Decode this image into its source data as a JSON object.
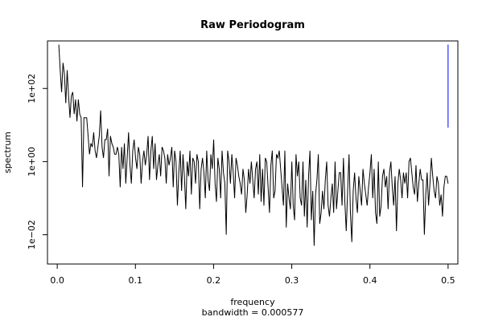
{
  "chart_data": {
    "type": "line",
    "title": "Raw Periodogram",
    "xlabel": "frequency",
    "xlabel_sub": "bandwidth = 0.000577",
    "ylabel": "spectrum",
    "x_ticks": [
      0.0,
      0.1,
      0.2,
      0.3,
      0.4,
      0.5
    ],
    "x_tick_labels": [
      "0.0",
      "0.1",
      "0.2",
      "0.3",
      "0.4",
      "0.5"
    ],
    "y_scale": "log",
    "y_ticks": [
      0.01,
      1,
      100
    ],
    "y_tick_labels": [
      "1e−02",
      "1e+00",
      "1e+02"
    ],
    "xlim": [
      -0.0125,
      0.5125
    ],
    "ylim_log10": [
      -2.8,
      3.3
    ],
    "colors": {
      "series": "#000000",
      "bandwidth_marker": "#0000ff"
    },
    "bandwidth_marker": {
      "x": 0.5,
      "y_low_log10": 0.93,
      "y_high_log10": 3.2
    },
    "series": [
      {
        "x_start": 0.002,
        "x_end": 0.5,
        "log10_y": [
          3.2,
          2.5,
          1.9,
          2.7,
          2.4,
          1.6,
          2.5,
          1.8,
          1.2,
          1.8,
          1.9,
          1.3,
          1.7,
          1.1,
          1.7,
          1.3,
          1.2,
          -0.7,
          1.2,
          1.2,
          1.2,
          0.7,
          0.2,
          0.5,
          0.4,
          0.8,
          0.3,
          0.1,
          0.4,
          0.7,
          1.4,
          0.4,
          0.1,
          0.6,
          0.6,
          0.9,
          -0.4,
          0.7,
          0.5,
          0.4,
          0.2,
          0.2,
          0.4,
          0.2,
          -0.7,
          0.4,
          -0.2,
          0.5,
          -0.6,
          0.1,
          0.8,
          -0.1,
          -0.6,
          0.3,
          0.6,
          0.1,
          -0.2,
          0.4,
          0.2,
          -0.6,
          0.0,
          0.3,
          -0.1,
          0.2,
          0.7,
          -0.5,
          0.3,
          0.7,
          -0.2,
          0.5,
          -0.5,
          -0.1,
          0.2,
          -0.4,
          0.4,
          0.3,
          0.1,
          -0.6,
          0.2,
          -0.1,
          0.1,
          0.4,
          -0.7,
          0.3,
          0.0,
          -1.2,
          -0.3,
          0.3,
          -0.8,
          0.2,
          -0.4,
          -1.3,
          0.0,
          -0.4,
          0.3,
          -0.9,
          0.1,
          0.0,
          -0.6,
          0.2,
          0.0,
          -1.3,
          -0.2,
          0.1,
          -0.3,
          -1.0,
          0.3,
          -0.5,
          -0.8,
          0.2,
          -0.2,
          0.6,
          -0.6,
          -1.1,
          0.1,
          -0.2,
          -1.0,
          0.3,
          -0.3,
          -0.6,
          -2.0,
          0.3,
          0.0,
          -0.6,
          0.2,
          -0.3,
          -1.0,
          0.1,
          -0.1,
          -0.4,
          -0.6,
          -0.9,
          -0.2,
          -0.5,
          -1.4,
          -0.9,
          -0.2,
          -0.6,
          0.0,
          -0.5,
          -1.0,
          -0.2,
          0.0,
          -0.9,
          0.2,
          -1.1,
          -0.2,
          -1.2,
          0.1,
          0.0,
          -0.7,
          -1.4,
          -0.1,
          0.3,
          -1.0,
          -0.8,
          0.2,
          0.1,
          0.3,
          -0.2,
          -0.7,
          -1.2,
          0.3,
          -1.8,
          -0.6,
          -1.0,
          -1.3,
          0.0,
          -1.2,
          -1.6,
          0.2,
          -0.4,
          0.0,
          -1.0,
          -1.2,
          0.0,
          -1.5,
          -0.5,
          -1.8,
          -0.4,
          0.3,
          -1.6,
          -0.8,
          -2.3,
          -0.9,
          -0.5,
          0.2,
          -1.7,
          -1.4,
          -0.8,
          -1.3,
          -0.5,
          0.0,
          -1.2,
          -1.5,
          -1.0,
          -0.6,
          -1.4,
          0.0,
          -1.3,
          -0.8,
          -0.3,
          -0.3,
          -1.2,
          0.1,
          -1.1,
          -1.9,
          -0.8,
          0.2,
          -1.4,
          -2.2,
          -0.8,
          -0.3,
          -1.0,
          -1.4,
          -0.4,
          -0.8,
          -1.2,
          -0.2,
          -0.6,
          -0.9,
          -1.2,
          -0.7,
          -0.3,
          0.2,
          -1.0,
          -0.2,
          -1.4,
          -1.7,
          0.0,
          -1.5,
          -1.2,
          -0.4,
          -0.2,
          -0.7,
          -0.4,
          -1.3,
          -0.3,
          0.0,
          -0.7,
          -1.2,
          -0.4,
          -1.9,
          -0.6,
          -0.2,
          -0.5,
          -1.0,
          -0.3,
          -0.6,
          -0.3,
          -1.0,
          0.0,
          0.1,
          -0.3,
          -0.7,
          -0.9,
          -0.1,
          -1.1,
          -0.6,
          -0.2,
          -0.5,
          -0.5,
          -2.0,
          -0.9,
          -0.3,
          -1.2,
          -0.6,
          0.1,
          -0.4,
          -0.8,
          -1.0,
          -0.4,
          -0.6,
          -1.2,
          -0.9,
          -1.5,
          -0.7,
          -0.4,
          -0.4,
          -0.6
        ]
      }
    ]
  }
}
